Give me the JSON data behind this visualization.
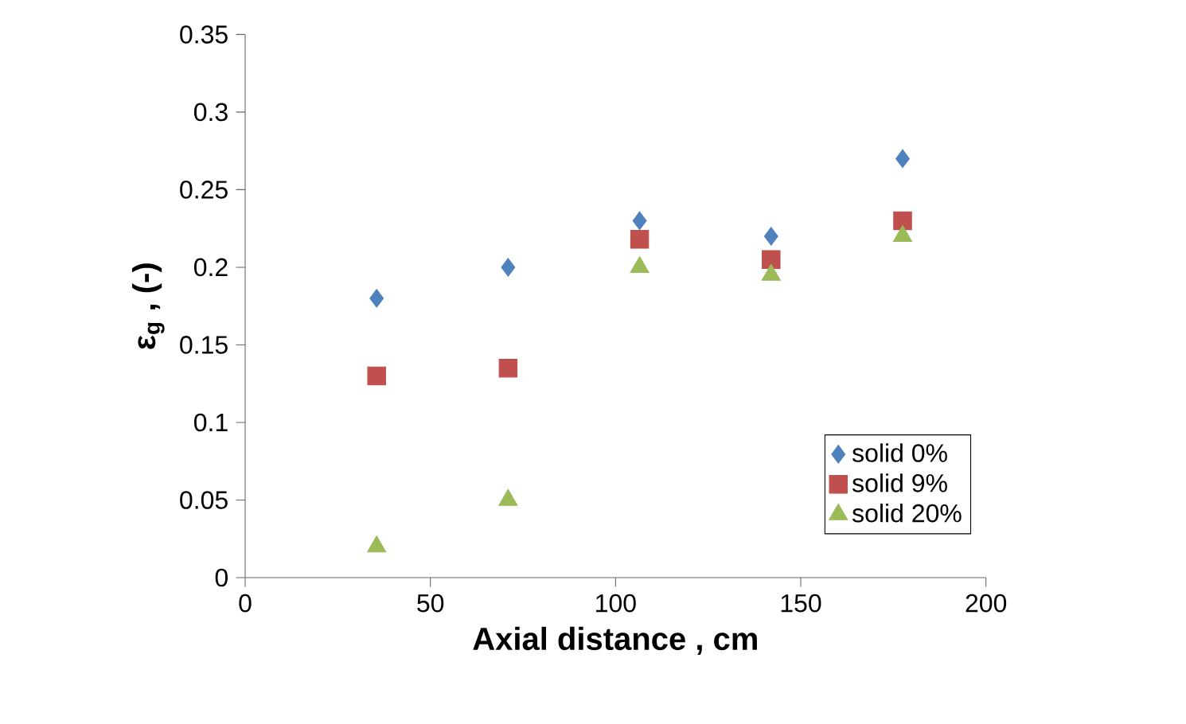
{
  "chart_data": {
    "type": "scatter",
    "xlabel": "Axial distance , cm",
    "ylabel": "ε$_{g}$ , (-)",
    "x": [
      35.5,
      71,
      106.5,
      142,
      177.5
    ],
    "series": [
      {
        "name": "solid 0%",
        "color": "#4f81bd",
        "marker": "diamond",
        "values": [
          0.18,
          0.2,
          0.23,
          0.22,
          0.27
        ]
      },
      {
        "name": "solid 9%",
        "color": "#c0504d",
        "marker": "square",
        "values": [
          0.13,
          0.135,
          0.218,
          0.205,
          0.23
        ]
      },
      {
        "name": "solid 20%",
        "color": "#9bbb59",
        "marker": "triangle",
        "values": [
          0.02,
          0.05,
          0.2,
          0.195,
          0.22
        ]
      }
    ],
    "xlim": [
      0,
      200
    ],
    "xticks": [
      0,
      50,
      100,
      150,
      200
    ],
    "ylim": [
      0,
      0.35
    ],
    "yticks": [
      0,
      0.05,
      0.1,
      0.15,
      0.2,
      0.25,
      0.3,
      0.35
    ],
    "grid": false,
    "legend": "bottom right"
  }
}
